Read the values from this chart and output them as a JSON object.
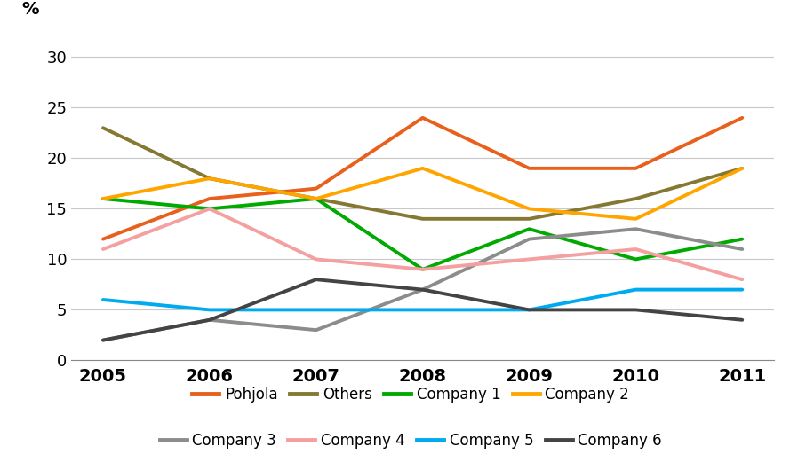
{
  "years": [
    2005,
    2006,
    2007,
    2008,
    2009,
    2010,
    2011
  ],
  "series": [
    {
      "name": "Pohjola",
      "color": "#E8601C",
      "values": [
        12,
        16,
        17,
        24,
        19,
        19,
        24
      ]
    },
    {
      "name": "Others",
      "color": "#857832",
      "values": [
        23,
        18,
        16,
        14,
        14,
        16,
        19
      ]
    },
    {
      "name": "Company 1",
      "color": "#00AA00",
      "values": [
        16,
        15,
        16,
        9,
        13,
        10,
        12
      ]
    },
    {
      "name": "Company 2",
      "color": "#FFA500",
      "values": [
        16,
        18,
        16,
        19,
        15,
        14,
        19
      ]
    },
    {
      "name": "Company 3",
      "color": "#8C8C8C",
      "values": [
        2,
        4,
        3,
        7,
        12,
        13,
        11
      ]
    },
    {
      "name": "Company 4",
      "color": "#F4A0A0",
      "values": [
        11,
        15,
        10,
        9,
        10,
        11,
        8
      ]
    },
    {
      "name": "Company 5",
      "color": "#00AAEE",
      "values": [
        6,
        5,
        5,
        5,
        5,
        7,
        7
      ]
    },
    {
      "name": "Company 6",
      "color": "#444444",
      "values": [
        2,
        4,
        8,
        7,
        5,
        5,
        4
      ]
    }
  ],
  "ylabel": "%",
  "ylim": [
    0,
    32
  ],
  "yticks": [
    0,
    5,
    10,
    15,
    20,
    25,
    30
  ],
  "background_color": "#ffffff",
  "grid_color": "#c8c8c8",
  "linewidth": 2.8
}
